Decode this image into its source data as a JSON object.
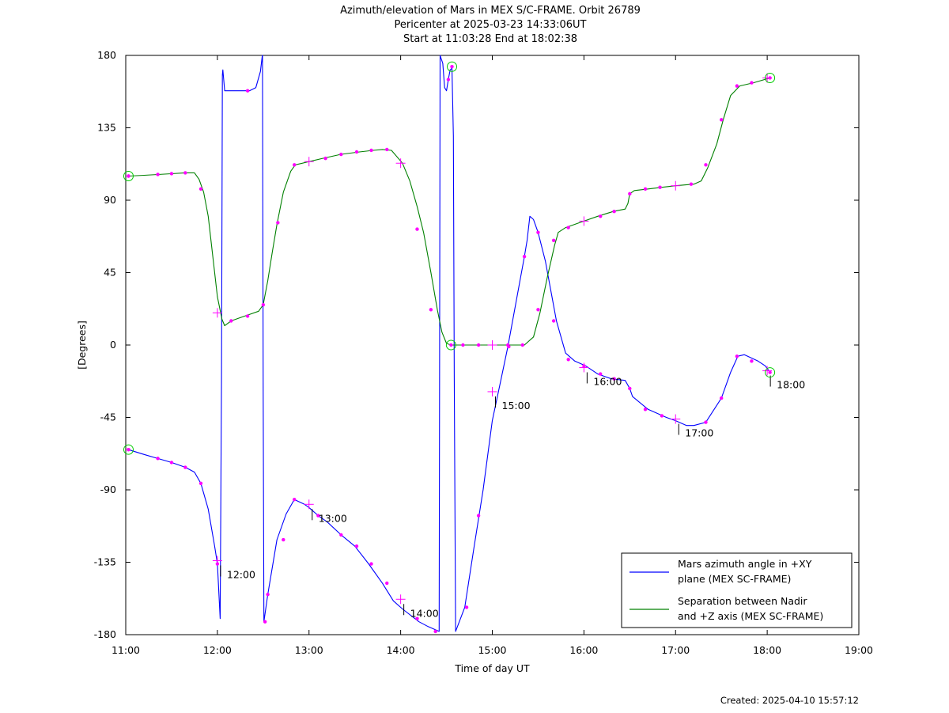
{
  "chart_data": {
    "type": "line",
    "title": [
      "Azimuth/elevation of Mars in MEX S/C-FRAME.  Orbit 26789",
      "Pericenter at 2025-03-23 14:33:06UT",
      "Start at 11:03:28 End at 18:02:38"
    ],
    "xlabel": "Time of day UT",
    "ylabel": "[Degrees]",
    "xlim": [
      11,
      19
    ],
    "ylim": [
      -180,
      180
    ],
    "x_ticks": [
      11,
      12,
      13,
      14,
      15,
      16,
      17,
      18,
      19
    ],
    "x_tick_labels": [
      "11:00",
      "12:00",
      "13:00",
      "14:00",
      "15:00",
      "16:00",
      "17:00",
      "18:00",
      "19:00"
    ],
    "y_ticks": [
      180,
      135,
      90,
      45,
      0,
      -45,
      -90,
      -135,
      -180
    ],
    "y_tick_labels": [
      "180",
      "135",
      "90",
      "45",
      "0",
      "-45",
      "-90",
      "-135",
      "-180"
    ],
    "grid": false,
    "legend_position": "bottom-right",
    "created": "Created: 2025-04-10 15:57:12",
    "series": [
      {
        "name": "Mars azimuth angle in +XY plane (MEX SC-FRAME)",
        "legend_lines": [
          "Mars azimuth angle in +XY",
          "plane (MEX SC-FRAME)"
        ],
        "color": "#0000ff",
        "points": [
          [
            11.03,
            -65
          ],
          [
            11.2,
            -68
          ],
          [
            11.35,
            -70.5
          ],
          [
            11.5,
            -73
          ],
          [
            11.65,
            -76
          ],
          [
            11.75,
            -79
          ],
          [
            11.82,
            -86
          ],
          [
            11.9,
            -102
          ],
          [
            11.97,
            -125
          ],
          [
            12.0,
            -136
          ],
          [
            12.03,
            -170
          ],
          [
            12.045,
            -20
          ],
          [
            12.055,
            168
          ],
          [
            12.06,
            171
          ],
          [
            12.08,
            158
          ],
          [
            12.2,
            158
          ],
          [
            12.35,
            158
          ],
          [
            12.42,
            160
          ],
          [
            12.47,
            170
          ],
          [
            12.49,
            180
          ],
          [
            12.492,
            180
          ],
          [
            12.5,
            -30
          ],
          [
            12.508,
            -172
          ],
          [
            12.55,
            -155
          ],
          [
            12.65,
            -121
          ],
          [
            12.75,
            -105
          ],
          [
            12.84,
            -96
          ],
          [
            12.95,
            -99
          ],
          [
            13.0,
            -101
          ],
          [
            13.1,
            -106
          ],
          [
            13.2,
            -110
          ],
          [
            13.35,
            -118
          ],
          [
            13.5,
            -125
          ],
          [
            13.65,
            -136
          ],
          [
            13.8,
            -148
          ],
          [
            13.92,
            -159
          ],
          [
            14.02,
            -164
          ],
          [
            14.2,
            -172
          ],
          [
            14.3,
            -175
          ],
          [
            14.42,
            -178
          ],
          [
            14.43,
            180
          ],
          [
            14.46,
            175
          ],
          [
            14.48,
            160
          ],
          [
            14.5,
            158
          ],
          [
            14.52,
            165
          ],
          [
            14.54,
            171
          ],
          [
            14.56,
            172
          ],
          [
            14.575,
            130
          ],
          [
            14.585,
            -20
          ],
          [
            14.6,
            -178
          ],
          [
            14.7,
            -163
          ],
          [
            14.8,
            -126
          ],
          [
            14.9,
            -90
          ],
          [
            15.0,
            -47
          ],
          [
            15.1,
            -20
          ],
          [
            15.17,
            -1
          ],
          [
            15.35,
            55
          ],
          [
            15.38,
            65
          ],
          [
            15.41,
            80
          ],
          [
            15.45,
            78
          ],
          [
            15.5,
            70
          ],
          [
            15.58,
            52
          ],
          [
            15.7,
            15
          ],
          [
            15.8,
            -5
          ],
          [
            15.9,
            -10
          ],
          [
            16.02,
            -13
          ],
          [
            16.15,
            -18
          ],
          [
            16.3,
            -21
          ],
          [
            16.45,
            -22
          ],
          [
            16.5,
            -27
          ],
          [
            16.53,
            -32
          ],
          [
            16.7,
            -40
          ],
          [
            16.9,
            -45
          ],
          [
            17.0,
            -47
          ],
          [
            17.12,
            -50
          ],
          [
            17.2,
            -50
          ],
          [
            17.33,
            -48
          ],
          [
            17.5,
            -33
          ],
          [
            17.6,
            -17
          ],
          [
            17.68,
            -7
          ],
          [
            17.75,
            -6
          ],
          [
            17.9,
            -10
          ],
          [
            17.98,
            -13
          ],
          [
            18.03,
            -17
          ]
        ],
        "sample_markers": [
          [
            11.03,
            -65
          ],
          [
            11.35,
            -70.5
          ],
          [
            11.5,
            -73
          ],
          [
            11.65,
            -76
          ],
          [
            11.82,
            -86
          ],
          [
            12.0,
            -136
          ],
          [
            12.33,
            158
          ],
          [
            12.52,
            -172
          ],
          [
            12.55,
            -155
          ],
          [
            12.72,
            -121
          ],
          [
            12.84,
            -96
          ],
          [
            13.1,
            -106
          ],
          [
            13.35,
            -118
          ],
          [
            13.52,
            -125
          ],
          [
            13.68,
            -136
          ],
          [
            13.85,
            -148
          ],
          [
            14.18,
            -170
          ],
          [
            14.38,
            -178
          ],
          [
            14.52,
            165
          ],
          [
            14.72,
            -163
          ],
          [
            14.85,
            -106
          ],
          [
            15.18,
            -1
          ],
          [
            15.35,
            55
          ],
          [
            15.5,
            70
          ],
          [
            15.67,
            15
          ],
          [
            15.83,
            -9
          ],
          [
            16.0,
            -13
          ],
          [
            16.18,
            -18
          ],
          [
            16.33,
            -21
          ],
          [
            16.5,
            -27
          ],
          [
            16.67,
            -40
          ],
          [
            16.85,
            -44
          ],
          [
            17.33,
            -48
          ],
          [
            17.5,
            -33
          ],
          [
            17.67,
            -7
          ],
          [
            17.83,
            -10
          ]
        ],
        "hour_markers": [
          {
            "x": 12.0,
            "y": -134,
            "label": "12:00"
          },
          {
            "x": 13.0,
            "y": -99,
            "label": "13:00"
          },
          {
            "x": 14.0,
            "y": -158,
            "label": "14:00"
          },
          {
            "x": 15.0,
            "y": -29,
            "label": "15:00"
          },
          {
            "x": 16.0,
            "y": -14,
            "label": "16:00"
          },
          {
            "x": 17.0,
            "y": -46,
            "label": "17:00"
          },
          {
            "x": 18.0,
            "y": -16,
            "label": "18:00"
          }
        ],
        "endpoint_circles": [
          [
            11.03,
            -65
          ],
          [
            18.03,
            -17
          ]
        ]
      },
      {
        "name": "Separation between Nadir and +Z axis (MEX SC-FRAME)",
        "legend_lines": [
          "Separation between Nadir",
          "and +Z axis (MEX SC-FRAME)"
        ],
        "color": "#008000",
        "points": [
          [
            11.03,
            105
          ],
          [
            11.2,
            105.5
          ],
          [
            11.35,
            106
          ],
          [
            11.5,
            106.5
          ],
          [
            11.65,
            107
          ],
          [
            11.75,
            107
          ],
          [
            11.8,
            103
          ],
          [
            11.85,
            95
          ],
          [
            11.9,
            80
          ],
          [
            11.95,
            55
          ],
          [
            12.0,
            30
          ],
          [
            12.05,
            16
          ],
          [
            12.08,
            12
          ],
          [
            12.15,
            15
          ],
          [
            12.25,
            17
          ],
          [
            12.35,
            19
          ],
          [
            12.45,
            21
          ],
          [
            12.5,
            25
          ],
          [
            12.55,
            40
          ],
          [
            12.6,
            58
          ],
          [
            12.65,
            75
          ],
          [
            12.72,
            95
          ],
          [
            12.8,
            108
          ],
          [
            12.85,
            112
          ],
          [
            13.0,
            114
          ],
          [
            13.15,
            116
          ],
          [
            13.35,
            118.5
          ],
          [
            13.55,
            120
          ],
          [
            13.7,
            121
          ],
          [
            13.8,
            121.5
          ],
          [
            13.9,
            121
          ],
          [
            14.02,
            113
          ],
          [
            14.1,
            102
          ],
          [
            14.18,
            86
          ],
          [
            14.25,
            70
          ],
          [
            14.33,
            45
          ],
          [
            14.4,
            22
          ],
          [
            14.45,
            8
          ],
          [
            14.5,
            1
          ],
          [
            14.55,
            0
          ],
          [
            14.6,
            0
          ],
          [
            15.0,
            0
          ],
          [
            15.35,
            0
          ],
          [
            15.45,
            5
          ],
          [
            15.52,
            20
          ],
          [
            15.6,
            42
          ],
          [
            15.68,
            62
          ],
          [
            15.72,
            70
          ],
          [
            15.8,
            73
          ],
          [
            15.9,
            75
          ],
          [
            16.0,
            77
          ],
          [
            16.15,
            80
          ],
          [
            16.32,
            83
          ],
          [
            16.45,
            84.5
          ],
          [
            16.48,
            88
          ],
          [
            16.5,
            94
          ],
          [
            16.55,
            96
          ],
          [
            16.7,
            97
          ],
          [
            16.85,
            98
          ],
          [
            17.0,
            99
          ],
          [
            17.2,
            100
          ],
          [
            17.28,
            102
          ],
          [
            17.35,
            110
          ],
          [
            17.45,
            125
          ],
          [
            17.52,
            140
          ],
          [
            17.6,
            155
          ],
          [
            17.7,
            161
          ],
          [
            17.85,
            163
          ],
          [
            18.03,
            166
          ]
        ],
        "sample_markers": [
          [
            11.03,
            105
          ],
          [
            11.35,
            106
          ],
          [
            11.5,
            106.5
          ],
          [
            11.65,
            107
          ],
          [
            11.82,
            97
          ],
          [
            12.15,
            15
          ],
          [
            12.33,
            18
          ],
          [
            12.5,
            25
          ],
          [
            12.66,
            76
          ],
          [
            12.84,
            112
          ],
          [
            13.18,
            116
          ],
          [
            13.35,
            118.5
          ],
          [
            13.52,
            120
          ],
          [
            13.68,
            121
          ],
          [
            13.85,
            121.5
          ],
          [
            14.18,
            72
          ],
          [
            14.33,
            22
          ],
          [
            14.68,
            0
          ],
          [
            14.85,
            0
          ],
          [
            15.17,
            0
          ],
          [
            15.33,
            0
          ],
          [
            15.5,
            22
          ],
          [
            15.67,
            65
          ],
          [
            15.83,
            73
          ],
          [
            16.18,
            80
          ],
          [
            16.33,
            83
          ],
          [
            16.5,
            94
          ],
          [
            16.67,
            97
          ],
          [
            16.83,
            98
          ],
          [
            17.17,
            100
          ],
          [
            17.33,
            112
          ],
          [
            17.5,
            140
          ],
          [
            17.67,
            161
          ],
          [
            17.83,
            163
          ]
        ],
        "hour_markers": [
          {
            "x": 12.0,
            "y": 20,
            "label": ""
          },
          {
            "x": 13.0,
            "y": 114,
            "label": ""
          },
          {
            "x": 14.0,
            "y": 113,
            "label": ""
          },
          {
            "x": 15.0,
            "y": 0,
            "label": ""
          },
          {
            "x": 16.0,
            "y": 77,
            "label": ""
          },
          {
            "x": 17.0,
            "y": 99,
            "label": ""
          },
          {
            "x": 18.0,
            "y": 166,
            "label": ""
          }
        ],
        "endpoint_circles": [
          [
            11.03,
            105
          ],
          [
            18.03,
            166
          ],
          [
            14.55,
            0
          ],
          [
            14.56,
            173
          ]
        ]
      }
    ]
  }
}
